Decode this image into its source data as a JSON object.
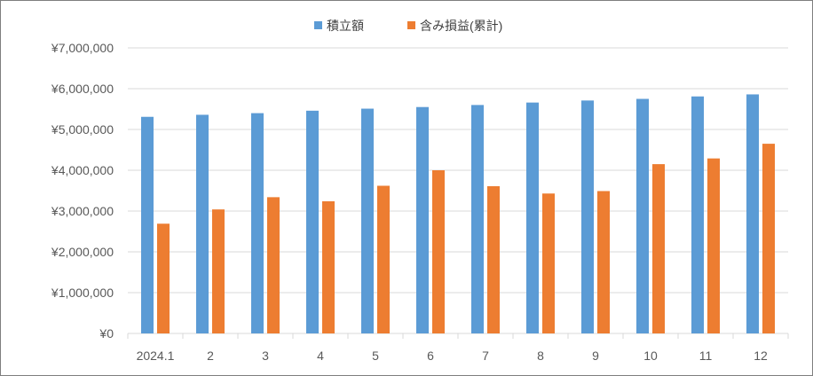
{
  "chart_data": {
    "type": "bar",
    "title": "",
    "xlabel": "",
    "ylabel": "",
    "categories": [
      "2024.1",
      "2",
      "3",
      "4",
      "5",
      "6",
      "7",
      "8",
      "9",
      "10",
      "11",
      "12"
    ],
    "series": [
      {
        "name": "積立額",
        "color": "#5b9bd5",
        "values": [
          5310000,
          5360000,
          5400000,
          5460000,
          5510000,
          5550000,
          5600000,
          5660000,
          5710000,
          5750000,
          5810000,
          5860000
        ]
      },
      {
        "name": "含み損益(累計)",
        "color": "#ed7d31",
        "values": [
          2690000,
          3040000,
          3340000,
          3240000,
          3620000,
          4000000,
          3610000,
          3430000,
          3490000,
          4150000,
          4290000,
          4650000
        ]
      }
    ],
    "ylim": [
      0,
      7000000
    ],
    "y_ticks": [
      0,
      1000000,
      2000000,
      3000000,
      4000000,
      5000000,
      6000000,
      7000000
    ],
    "y_tick_labels": [
      "¥0",
      "¥1,000,000",
      "¥2,000,000",
      "¥3,000,000",
      "¥4,000,000",
      "¥5,000,000",
      "¥6,000,000",
      "¥7,000,000"
    ],
    "grid": true,
    "legend_position": "top-center"
  }
}
